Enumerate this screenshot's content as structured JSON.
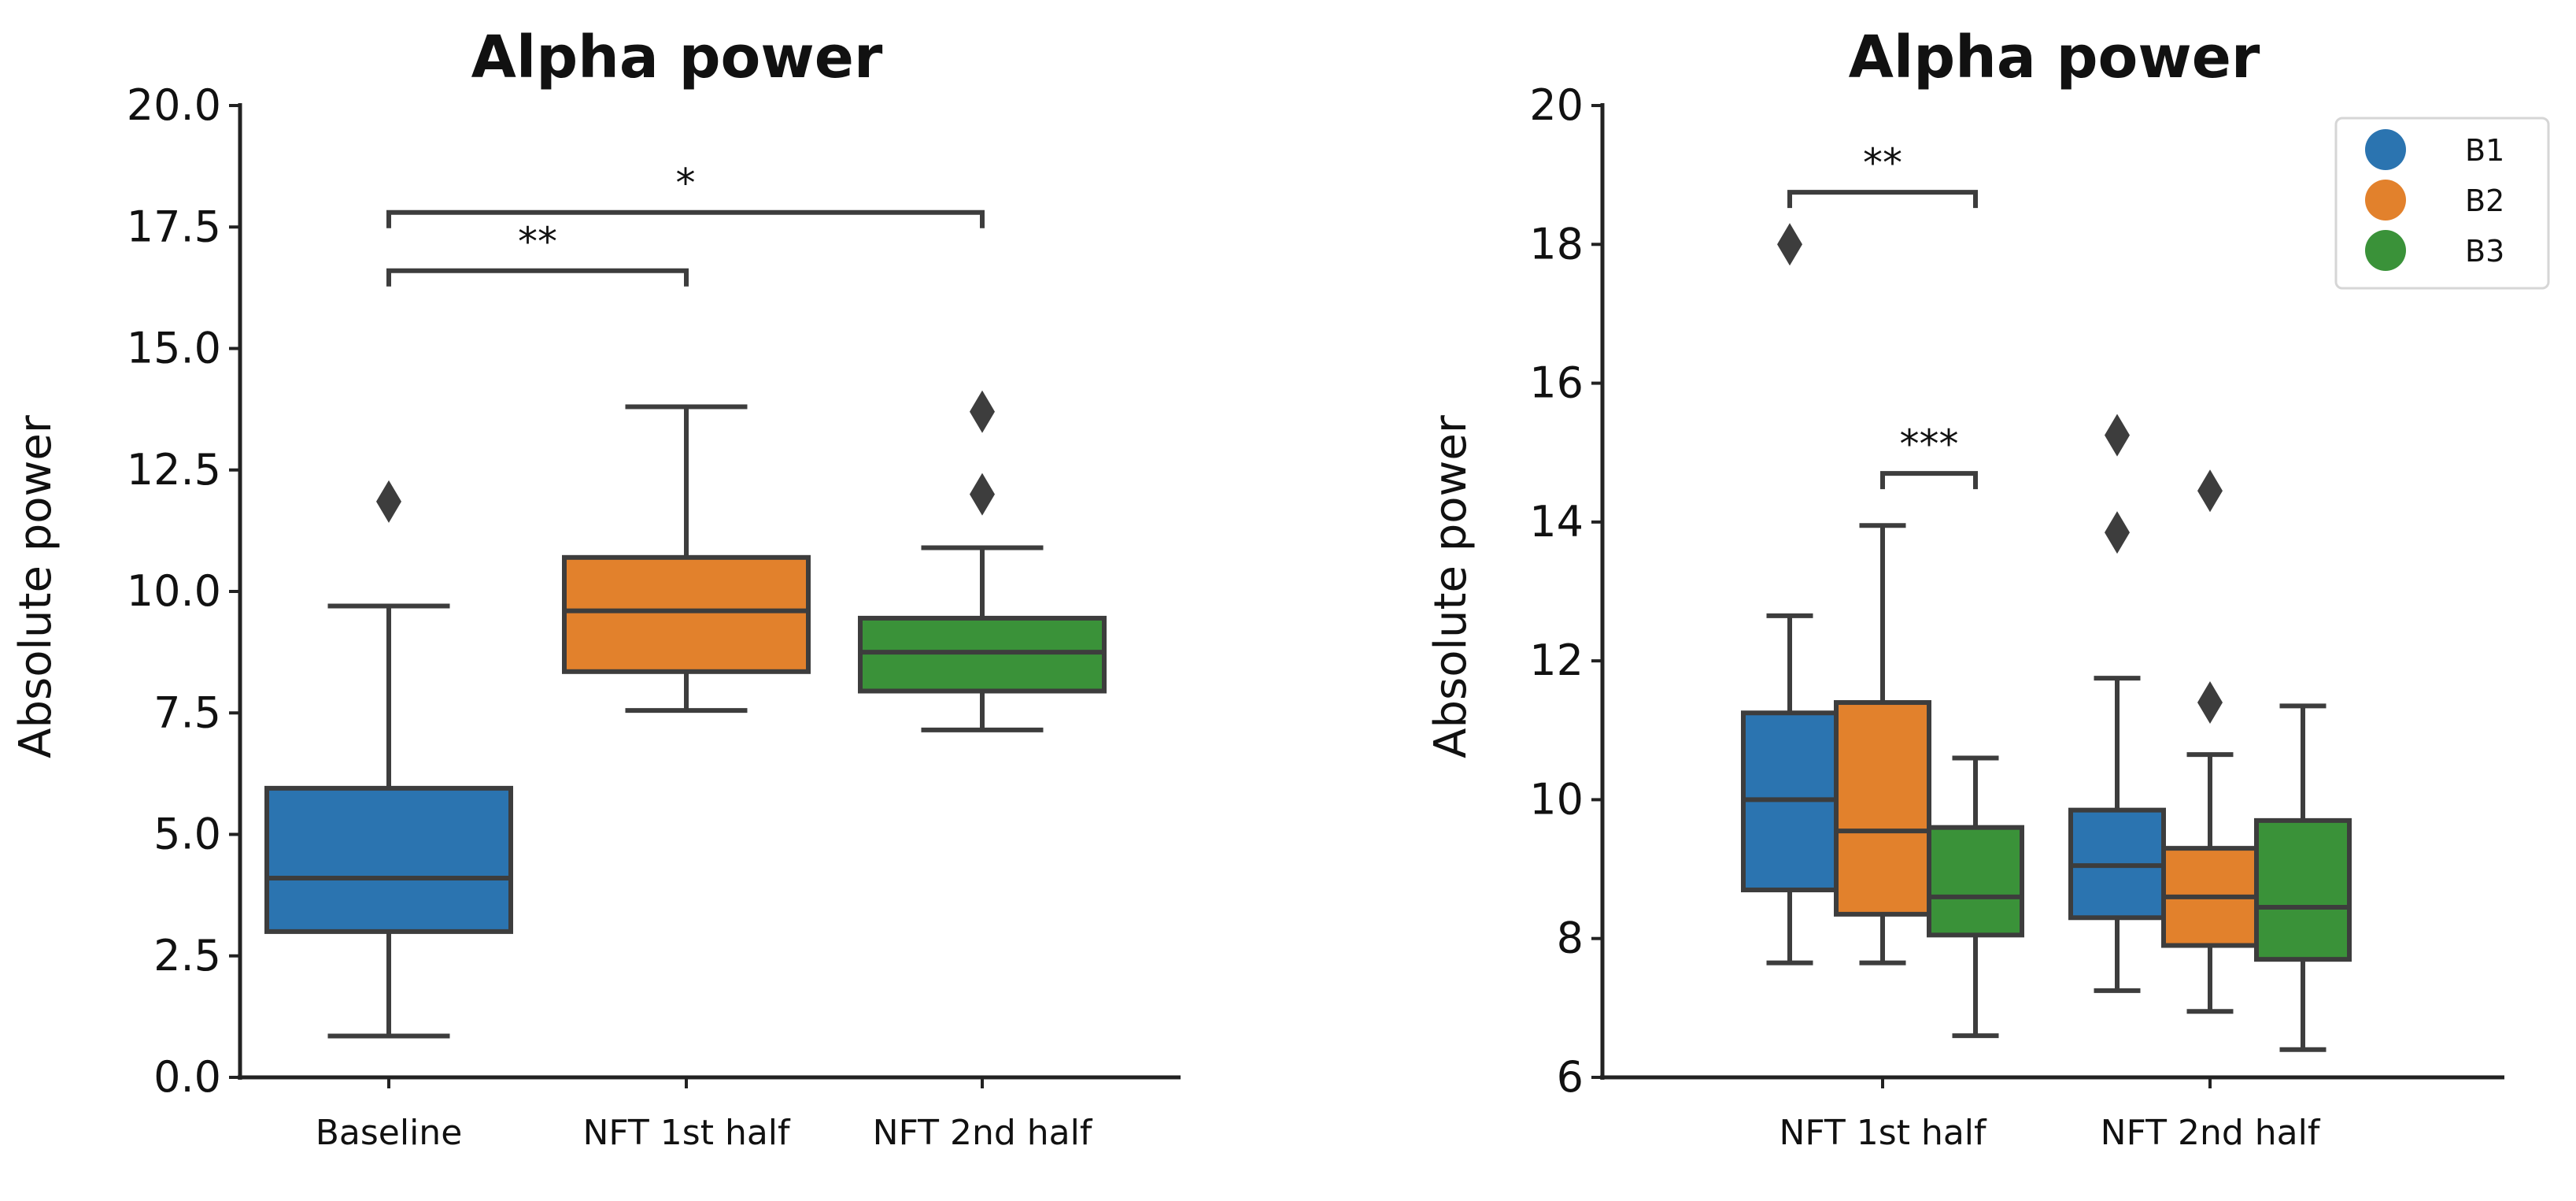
{
  "colors": {
    "B1": "#2b74b0",
    "B2": "#e2812c",
    "B3": "#3a9239",
    "line": "#3d3d3d"
  },
  "chart_data": [
    {
      "type": "box",
      "title": "Alpha power",
      "xlabel": "",
      "ylabel": "Absolute power",
      "ylim": [
        0,
        20
      ],
      "yticks": [
        "0.0",
        "2.5",
        "5.0",
        "7.5",
        "10.0",
        "12.5",
        "15.0",
        "17.5",
        "20.0"
      ],
      "categories": [
        "Baseline",
        "NFT 1st half",
        "NFT 2nd half"
      ],
      "boxes": [
        {
          "category": "Baseline",
          "color": "B1",
          "min": 0.85,
          "q1": 3.0,
          "median": 4.1,
          "q3": 5.95,
          "max": 9.7,
          "outliers": [
            11.85
          ]
        },
        {
          "category": "NFT 1st half",
          "color": "B2",
          "min": 7.55,
          "q1": 8.35,
          "median": 9.6,
          "q3": 10.7,
          "max": 13.8,
          "outliers": []
        },
        {
          "category": "NFT 2nd half",
          "color": "B3",
          "min": 7.15,
          "q1": 7.95,
          "median": 8.75,
          "q3": 9.45,
          "max": 10.9,
          "outliers": [
            12.0,
            13.7
          ]
        }
      ],
      "significance": [
        {
          "from": "Baseline",
          "to": "NFT 1st half",
          "label": "**",
          "y": 16.6
        },
        {
          "from": "Baseline",
          "to": "NFT 2nd half",
          "label": "*",
          "y": 17.8
        }
      ]
    },
    {
      "type": "box",
      "title": "Alpha power",
      "xlabel": "",
      "ylabel": "Absolute power",
      "ylim": [
        6,
        20
      ],
      "yticks": [
        "6",
        "8",
        "10",
        "12",
        "14",
        "16",
        "18",
        "20"
      ],
      "categories": [
        "NFT 1st half",
        "NFT 2nd half"
      ],
      "legend": {
        "position": "top-right",
        "entries": [
          "B1",
          "B2",
          "B3"
        ]
      },
      "series": [
        {
          "name": "B1",
          "boxes": [
            {
              "min": 7.65,
              "q1": 8.7,
              "median": 10.0,
              "q3": 11.25,
              "max": 12.65,
              "outliers": [
                18.0
              ]
            },
            {
              "min": 7.25,
              "q1": 8.3,
              "median": 9.05,
              "q3": 9.85,
              "max": 11.75,
              "outliers": [
                13.85,
                15.25
              ]
            }
          ]
        },
        {
          "name": "B2",
          "boxes": [
            {
              "min": 7.65,
              "q1": 8.35,
              "median": 9.55,
              "q3": 11.4,
              "max": 13.95,
              "outliers": []
            },
            {
              "min": 6.95,
              "q1": 7.9,
              "median": 8.6,
              "q3": 9.3,
              "max": 10.65,
              "outliers": [
                11.4,
                14.45
              ]
            }
          ]
        },
        {
          "name": "B3",
          "boxes": [
            {
              "min": 6.6,
              "q1": 8.05,
              "median": 8.6,
              "q3": 9.6,
              "max": 10.6,
              "outliers": []
            },
            {
              "min": 6.4,
              "q1": 7.7,
              "median": 8.45,
              "q3": 9.7,
              "max": 11.35,
              "outliers": []
            }
          ]
        }
      ],
      "significance": [
        {
          "category": "NFT 1st half",
          "from": "B1",
          "to": "B3",
          "label": "**",
          "y": 18.75
        },
        {
          "category": "NFT 1st half",
          "from": "B2",
          "to": "B3",
          "label": "***",
          "y": 14.7
        }
      ]
    }
  ]
}
